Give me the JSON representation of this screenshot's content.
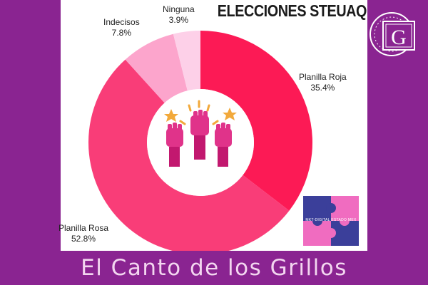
{
  "chart_data": {
    "type": "pie",
    "title": "ELECCIONES STEUAQ",
    "categories": [
      "Planilla Roja",
      "Planilla Rosa",
      "Indecisos",
      "Ninguna"
    ],
    "values": [
      35.4,
      52.8,
      7.8,
      3.9
    ],
    "value_labels": [
      "35.4%",
      "52.8%",
      "7.8%",
      "3.9%"
    ],
    "colors": [
      "#fc1a55",
      "#f93d78",
      "#fca5cc",
      "#fdd0e8"
    ],
    "donut": true
  },
  "footer": {
    "text": "El Canto de los Grillos"
  },
  "logo": {
    "icon": "cg-logo-icon",
    "letter": "G"
  },
  "puzzle": {
    "icon": "puzzle-logo-icon",
    "text": "MKT-DIGITAL ESTADO MEX",
    "colors": [
      "#3b3f9a",
      "#f06cc0"
    ]
  },
  "center_icon": {
    "name": "raised-fists-icon",
    "colors": [
      "#e0338a",
      "#f2a93b"
    ]
  }
}
